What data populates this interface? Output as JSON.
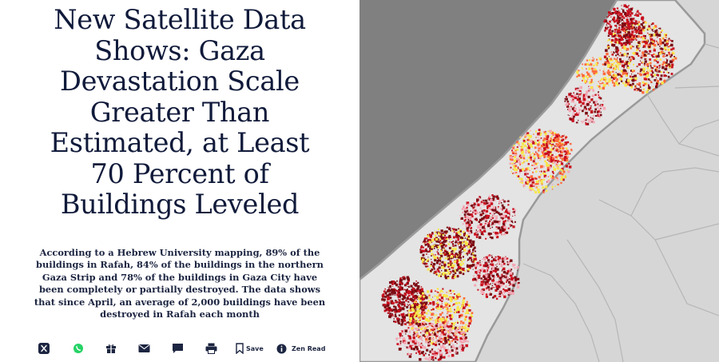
{
  "article": {
    "headline_lines": [
      "New Satellite Data",
      "Shows: Gaza",
      "Devastation Scale",
      "Greater Than",
      "Estimated, at Least",
      "70 Percent of",
      "Buildings Leveled"
    ],
    "summary_lines": [
      "According to a Hebrew University mapping, 89% of the",
      "buildings in Rafah, 84% of the buildings in the northern",
      "Gaza Strip and 78% of the buildings in Gaza City have",
      "been completely or partially destroyed. The data shows",
      "that since April, an average of 2,000 buildings have been",
      "destroyed in Rafah each month"
    ]
  },
  "share_bar": {
    "save_label": "Save",
    "zen_read_label": "Zen Read",
    "icons": [
      "x-icon",
      "whatsapp-icon",
      "gift-icon",
      "mail-icon",
      "comment-icon",
      "print-icon",
      "bookmark-icon",
      "info-icon"
    ]
  },
  "map": {
    "colors": {
      "sea": "#808080",
      "land": "#d6d6d6",
      "strip": "#e3e3e3",
      "destroyed": "#7a0a12",
      "severe": "#c8101e",
      "moderate": "#ff6a3a",
      "possible": "#f7e64a",
      "light": "#f4a7b4"
    }
  }
}
